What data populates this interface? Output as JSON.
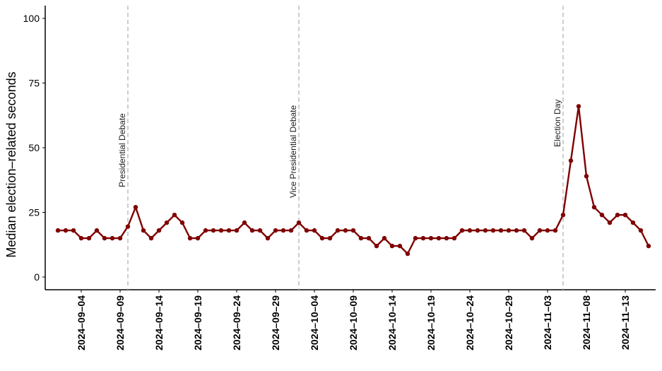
{
  "chart_data": {
    "type": "line",
    "ylabel": "Median election–related seconds",
    "xlabel": "",
    "ylim": [
      0,
      100
    ],
    "y_ticks": [
      0,
      25,
      50,
      75,
      100
    ],
    "x_tick_labels": [
      "2024–09–04",
      "2024–09–09",
      "2024–09–14",
      "2024–09–19",
      "2024–09–24",
      "2024–09–29",
      "2024–10–04",
      "2024–10–09",
      "2024–10–14",
      "2024–10–19",
      "2024–10–24",
      "2024–10–29",
      "2024–11–03",
      "2024–11–08",
      "2024–11–13"
    ],
    "x_tick_dates": [
      "2024-09-04",
      "2024-09-09",
      "2024-09-14",
      "2024-09-19",
      "2024-09-24",
      "2024-09-29",
      "2024-10-04",
      "2024-10-09",
      "2024-10-14",
      "2024-10-19",
      "2024-10-24",
      "2024-10-29",
      "2024-11-03",
      "2024-11-08",
      "2024-11-13"
    ],
    "x_range": [
      "2024-08-31",
      "2024-11-16"
    ],
    "grid": false,
    "line_color": "#7f0000",
    "event_line_color": "#bdbdbd",
    "events": [
      {
        "date": "2024-09-10",
        "label": "Presidential Debate"
      },
      {
        "date": "2024-10-02",
        "label": "Vice Presidential Debate"
      },
      {
        "date": "2024-11-05",
        "label": "Election Day"
      }
    ],
    "series": [
      {
        "x": [
          "2024-09-01",
          "2024-09-02",
          "2024-09-03",
          "2024-09-04",
          "2024-09-05",
          "2024-09-06",
          "2024-09-07",
          "2024-09-08",
          "2024-09-09",
          "2024-09-10",
          "2024-09-11",
          "2024-09-12",
          "2024-09-13",
          "2024-09-14",
          "2024-09-15",
          "2024-09-16",
          "2024-09-17",
          "2024-09-18",
          "2024-09-19",
          "2024-09-20",
          "2024-09-21",
          "2024-09-22",
          "2024-09-23",
          "2024-09-24",
          "2024-09-25",
          "2024-09-26",
          "2024-09-27",
          "2024-09-28",
          "2024-09-29",
          "2024-09-30",
          "2024-10-01",
          "2024-10-02",
          "2024-10-03",
          "2024-10-04",
          "2024-10-05",
          "2024-10-06",
          "2024-10-07",
          "2024-10-08",
          "2024-10-09",
          "2024-10-10",
          "2024-10-11",
          "2024-10-12",
          "2024-10-13",
          "2024-10-14",
          "2024-10-15",
          "2024-10-16",
          "2024-10-17",
          "2024-10-18",
          "2024-10-19",
          "2024-10-20",
          "2024-10-21",
          "2024-10-22",
          "2024-10-23",
          "2024-10-24",
          "2024-10-25",
          "2024-10-26",
          "2024-10-27",
          "2024-10-28",
          "2024-10-29",
          "2024-10-30",
          "2024-10-31",
          "2024-11-01",
          "2024-11-02",
          "2024-11-03",
          "2024-11-04",
          "2024-11-05",
          "2024-11-06",
          "2024-11-07",
          "2024-11-08",
          "2024-11-09",
          "2024-11-10",
          "2024-11-11",
          "2024-11-12",
          "2024-11-13",
          "2024-11-14",
          "2024-11-15",
          "2024-11-16"
        ],
        "y": [
          18,
          18,
          18,
          15,
          15,
          18,
          15,
          15,
          15,
          19.5,
          27,
          18,
          15,
          18,
          21,
          24,
          21,
          15,
          15,
          18,
          18,
          18,
          18,
          18,
          21,
          18,
          18,
          15,
          18,
          18,
          18,
          21,
          18,
          18,
          15,
          15,
          18,
          18,
          18,
          15,
          15,
          12,
          15,
          12,
          12,
          9,
          15,
          15,
          15,
          15,
          15,
          15,
          18,
          18,
          18,
          18,
          18,
          18,
          18,
          18,
          18,
          15,
          18,
          18,
          18,
          24,
          45,
          66,
          39,
          27,
          24,
          21,
          24,
          24,
          21,
          18,
          12
        ]
      }
    ]
  }
}
